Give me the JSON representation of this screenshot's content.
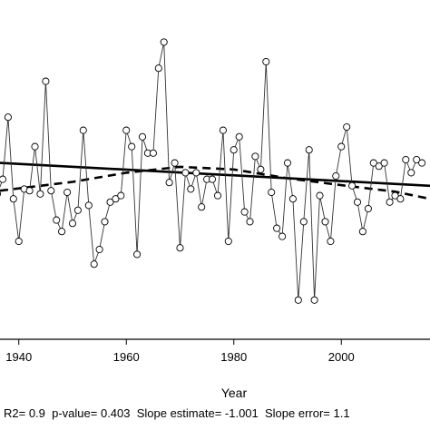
{
  "chart_data": {
    "type": "line",
    "xlabel": "Year",
    "ylabel": "",
    "xlim": [
      1936.5,
      2016.5
    ],
    "ylim": [
      0,
      100
    ],
    "x_ticks": [
      1940,
      1960,
      1980,
      2000
    ],
    "x_tick_labels": [
      "1940",
      "1960",
      "1980",
      "2000"
    ],
    "grid": false,
    "series": [
      {
        "style": "line-with-open-circle-markers",
        "x": [
          1936,
          1937,
          1938,
          1939,
          1940,
          1941,
          1942,
          1943,
          1944,
          1945,
          1946,
          1947,
          1948,
          1949,
          1950,
          1951,
          1952,
          1953,
          1954,
          1955,
          1956,
          1957,
          1958,
          1959,
          1960,
          1961,
          1962,
          1963,
          1964,
          1965,
          1966,
          1967,
          1968,
          1969,
          1970,
          1971,
          1972,
          1973,
          1974,
          1975,
          1976,
          1977,
          1978,
          1979,
          1980,
          1981,
          1982,
          1983,
          1984,
          1985,
          1986,
          1987,
          1988,
          1989,
          1990,
          1991,
          1992,
          1993,
          1994,
          1995,
          1996,
          1997,
          1998,
          1999,
          2000,
          2001,
          2002,
          2003,
          2004,
          2005,
          2006,
          2007,
          2008,
          2009,
          2010,
          2011,
          2012,
          2013,
          2014,
          2015
        ],
        "y": [
          44.5,
          49,
          68,
          43,
          30,
          46,
          45.5,
          59,
          44.5,
          79,
          45.5,
          36.5,
          33,
          45,
          35.5,
          39.5,
          64,
          41,
          23,
          27.5,
          36,
          42,
          43,
          44,
          64,
          59,
          26,
          62,
          57,
          57,
          83,
          91,
          48,
          54,
          28,
          51,
          46,
          51,
          40.5,
          49,
          49,
          44,
          64,
          30,
          58,
          62,
          39,
          36,
          56,
          52,
          85,
          45,
          34,
          31.5,
          54,
          43,
          12,
          36,
          58,
          12,
          44,
          36,
          30,
          50,
          59,
          65,
          47,
          42,
          33,
          40,
          54,
          53,
          54,
          42,
          44,
          43,
          55,
          51,
          55,
          54
        ]
      }
    ],
    "trend_lines": [
      {
        "style": "solid",
        "x": [
          1936.5,
          2016.5
        ],
        "y": [
          54,
          47
        ]
      },
      {
        "style": "dashed",
        "x": [
          1936.5,
          1950,
          1960,
          1970,
          1980,
          1990,
          2000,
          2010,
          2016.5
        ],
        "y": [
          45.5,
          48.2,
          51.0,
          52.8,
          52.0,
          49.3,
          47.2,
          45.2,
          43.0
        ]
      }
    ],
    "annotation": "R2= 0.9  p-value= 0.403  Slope estimate= -1.001  Slope error= 1.1"
  }
}
